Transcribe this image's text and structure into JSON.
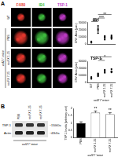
{
  "panel_labels": [
    "A",
    "B"
  ],
  "panel_A": {
    "columns": [
      {
        "label": "F4/80",
        "color": "#e8382e"
      },
      {
        "label": "IB4",
        "color": "#3fbf3f"
      },
      {
        "label": "TSP-1",
        "color": "#c03ac8"
      }
    ],
    "rows": [
      "WT",
      "PBS",
      "recFX 1-25",
      "recFX 7-25"
    ],
    "group_label": "ccl2⁻/⁻ mice"
  },
  "panel_B": {
    "lanes": [
      "PBS",
      "recFX 1-25",
      "recFX 7-25"
    ],
    "group_label": "ccl2⁻/⁻ mice",
    "bands": [
      {
        "label": "TSP-1",
        "size": "~150kDa"
      },
      {
        "label": "Actin",
        "size": "~42kDa"
      }
    ]
  },
  "chart_data": [
    {
      "type": "scatter",
      "title": "IB4",
      "y_label": "CNV Area (µm²)",
      "categories": [
        "WT",
        "PBS",
        "recFX 1-25",
        "recFX 7-25"
      ],
      "points": [
        [
          2000,
          3000,
          2500,
          1800,
          3500
        ],
        [
          18000,
          22000,
          15000,
          20000,
          25000
        ],
        [
          8000,
          10000,
          6000,
          9000,
          11000
        ],
        [
          9000,
          7000,
          12000,
          8500,
          10500
        ]
      ],
      "color": "#000000",
      "ylim": [
        0,
        30000
      ],
      "yticks": [
        0,
        10000,
        20000,
        30000
      ],
      "tick_labels": "y",
      "grid": false,
      "annotations": [
        {
          "text": "***",
          "between": [
            "WT",
            "PBS"
          ]
        },
        {
          "text": "***",
          "between": [
            "PBS",
            "recFX 1-25"
          ]
        },
        {
          "text": "**",
          "between": [
            "PBS",
            "recFX 7-25"
          ]
        }
      ]
    },
    {
      "type": "scatter",
      "title": "TSP-1",
      "y_label": "CNV Area (µm²)",
      "x_label": "ccl2⁻/⁻ mice",
      "categories": [
        "WT",
        "PBS",
        "recFX 1-25",
        "recFX 7-25"
      ],
      "points": [
        [
          6000,
          8000,
          7000,
          5500
        ],
        [
          10000,
          12000,
          9000,
          11000,
          13000
        ],
        [
          15000,
          18000,
          14000,
          17000
        ],
        [
          16000,
          14500,
          19000,
          15500
        ]
      ],
      "color": "#000000",
      "ylim": [
        0,
        30000
      ],
      "yticks": [
        0,
        10000,
        20000,
        30000
      ],
      "grid": false,
      "annotations": [
        {
          "text": "*",
          "between": [
            "PBS",
            "recFX 1-25"
          ]
        },
        {
          "text": "*",
          "between": [
            "PBS",
            "recFX 7-25"
          ]
        }
      ]
    },
    {
      "type": "bar",
      "y_label": "TSP-1 levels (arbitrary unit)",
      "x_label": "ccl2⁻/⁻ mice",
      "categories": [
        "PBS",
        "recFX 1-25",
        "recFX 7-25"
      ],
      "values": [
        1,
        1.7,
        1.6
      ],
      "errors": [
        0.08,
        0.12,
        0.1
      ],
      "colors": [
        "#000000",
        "#ffffff",
        "#ffffff"
      ],
      "ylim": [
        0,
        2
      ],
      "yticks": [
        0,
        0.5,
        1,
        1.5,
        2
      ],
      "grid": false,
      "annotations": [
        {
          "text": "**",
          "at": "recFX 1-25"
        },
        {
          "text": "**",
          "at": "recFX 7-25"
        }
      ]
    }
  ]
}
